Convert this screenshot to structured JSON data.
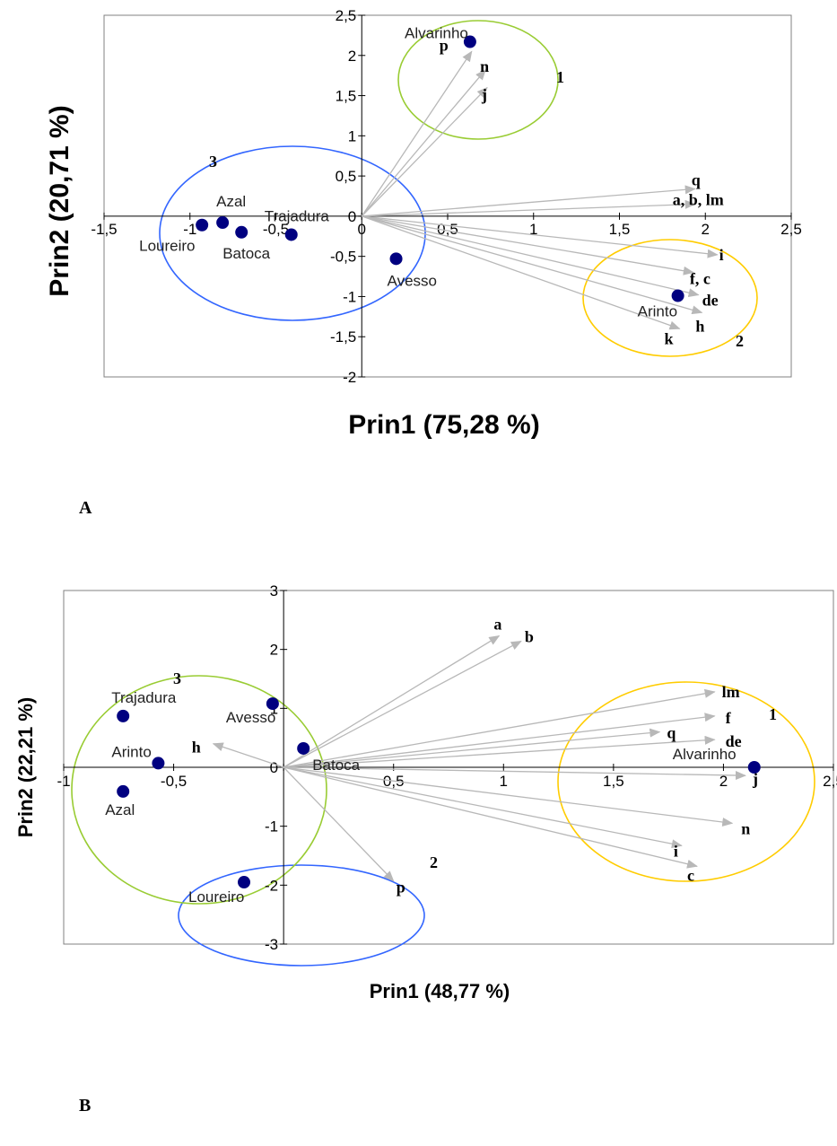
{
  "chart_data": [
    {
      "type": "scatter",
      "panel": "A",
      "xlabel": "Prin1 (75,28 %)",
      "ylabel": "Prin2 (20,71 %)",
      "xlim": [
        -1.5,
        2.5
      ],
      "ylim": [
        -2,
        2.5
      ],
      "xticks": [
        "-1,5",
        "-1",
        "-0,5",
        "0",
        "0,5",
        "1",
        "1,5",
        "2",
        "2,5"
      ],
      "xtick_values": [
        -1.5,
        -1,
        -0.5,
        0,
        0.5,
        1,
        1.5,
        2,
        2.5
      ],
      "yticks": [
        "2,5",
        "2",
        "1,5",
        "1",
        "0,5",
        "0",
        "-0,5",
        "-1",
        "-1,5",
        "-2"
      ],
      "ytick_values": [
        2.5,
        2,
        1.5,
        1,
        0.5,
        0,
        -0.5,
        -1,
        -1.5,
        -2
      ],
      "grid": false,
      "point_color": "#000080",
      "vector_color": "#b8b8b8",
      "points": [
        {
          "label": "Alvarinho",
          "x": 0.63,
          "y": 2.17
        },
        {
          "label": "Azal",
          "x": -0.81,
          "y": -0.08
        },
        {
          "label": "Loureiro",
          "x": -0.93,
          "y": -0.11
        },
        {
          "label": "Batoca",
          "x": -0.7,
          "y": -0.2
        },
        {
          "label": "Trajadura",
          "x": -0.41,
          "y": -0.23
        },
        {
          "label": "Avesso",
          "x": 0.2,
          "y": -0.53
        },
        {
          "label": "Arinto",
          "x": 1.84,
          "y": -0.99
        }
      ],
      "vectors": [
        {
          "label": "p",
          "x": 0.64,
          "y": 2.05
        },
        {
          "label": "n",
          "x": 0.72,
          "y": 1.82
        },
        {
          "label": "j",
          "x": 0.73,
          "y": 1.6
        },
        {
          "label": "q",
          "x": 1.94,
          "y": 0.34
        },
        {
          "label": "a, b, lm",
          "x": 1.94,
          "y": 0.15
        },
        {
          "label": "i",
          "x": 2.07,
          "y": -0.48
        },
        {
          "label": "f, c",
          "x": 1.93,
          "y": -0.7
        },
        {
          "label": "de",
          "x": 1.96,
          "y": -0.98
        },
        {
          "label": "h",
          "x": 1.98,
          "y": -1.2
        },
        {
          "label": "k",
          "x": 1.85,
          "y": -1.4
        }
      ],
      "groups": [
        {
          "label": "1",
          "color": "#99cc33"
        },
        {
          "label": "2",
          "color": "#ffcc00"
        },
        {
          "label": "3",
          "color": "#3366ff"
        }
      ]
    },
    {
      "type": "scatter",
      "panel": "B",
      "xlabel": "Prin1 (48,77 %)",
      "ylabel": "Prin2 (22,21 %)",
      "xlim": [
        -1,
        2.5
      ],
      "ylim": [
        -3,
        3
      ],
      "xticks": [
        "-1",
        "-0,5",
        "0",
        "0,5",
        "1",
        "1,5",
        "2",
        "2,5"
      ],
      "xtick_values": [
        -1,
        -0.5,
        0,
        0.5,
        1,
        1.5,
        2,
        2.5
      ],
      "yticks": [
        "3",
        "2",
        "1",
        "0",
        "-1",
        "-2",
        "-3"
      ],
      "ytick_values": [
        3,
        2,
        1,
        0,
        -1,
        -2,
        -3
      ],
      "grid": false,
      "point_color": "#000080",
      "vector_color": "#b8b8b8",
      "points": [
        {
          "label": "Trajadura",
          "x": -0.73,
          "y": 0.87
        },
        {
          "label": "Arinto",
          "x": -0.57,
          "y": 0.07
        },
        {
          "label": "Azal",
          "x": -0.73,
          "y": -0.41
        },
        {
          "label": "Avesso",
          "x": -0.05,
          "y": 1.08
        },
        {
          "label": "Batoca",
          "x": 0.09,
          "y": 0.32
        },
        {
          "label": "Loureiro",
          "x": -0.18,
          "y": -1.95
        },
        {
          "label": "Alvarinho",
          "x": 2.14,
          "y": 0.0
        }
      ],
      "vectors": [
        {
          "label": "a",
          "x": 0.98,
          "y": 2.23
        },
        {
          "label": "b",
          "x": 1.08,
          "y": 2.14
        },
        {
          "label": "lm",
          "x": 1.96,
          "y": 1.28
        },
        {
          "label": "f",
          "x": 1.96,
          "y": 0.87
        },
        {
          "label": "q",
          "x": 1.71,
          "y": 0.6
        },
        {
          "label": "de",
          "x": 1.96,
          "y": 0.47
        },
        {
          "label": "h",
          "x": -0.32,
          "y": 0.4
        },
        {
          "label": "j",
          "x": 2.1,
          "y": -0.14
        },
        {
          "label": "n",
          "x": 2.04,
          "y": -0.95
        },
        {
          "label": "i",
          "x": 1.81,
          "y": -1.33
        },
        {
          "label": "c",
          "x": 1.88,
          "y": -1.68
        },
        {
          "label": "p",
          "x": 0.5,
          "y": -1.93
        }
      ],
      "groups": [
        {
          "label": "1",
          "color": "#ffcc00"
        },
        {
          "label": "2",
          "color": "#3366ff"
        },
        {
          "label": "3",
          "color": "#99cc33"
        }
      ]
    }
  ]
}
